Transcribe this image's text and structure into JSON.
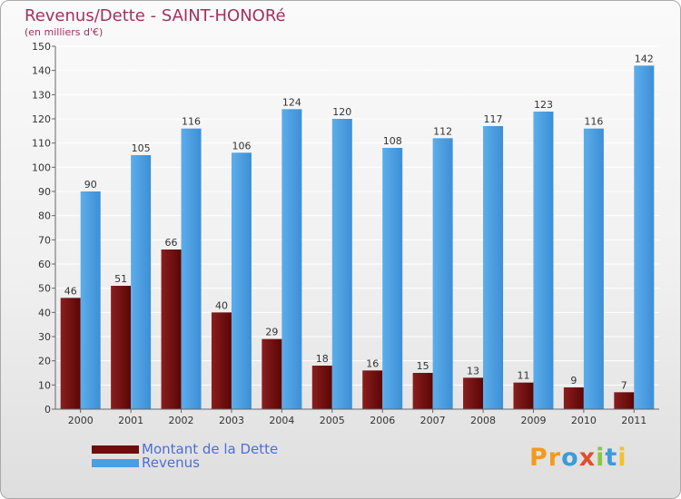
{
  "colors": {
    "debt": "#6e0b0b",
    "revenue": "#4a9ee2",
    "title": "#a3305f",
    "legend_text": "#4d6ed6",
    "axis_text": "#333333",
    "grid": "#ffffff"
  },
  "logo": {
    "text": "Proxiti",
    "letter_colors": [
      "#f39a1d",
      "#f39a1d",
      "#3c9bd8",
      "#e24d2c",
      "#8cc63f",
      "#3c9bd8",
      "#f3c12a"
    ]
  },
  "chart_data": {
    "type": "bar",
    "title": "Revenus/Dette - SAINT-HONORé",
    "subtitle": "(en milliers d'€)",
    "categories": [
      "2000",
      "2001",
      "2002",
      "2003",
      "2004",
      "2005",
      "2006",
      "2007",
      "2008",
      "2009",
      "2010",
      "2011"
    ],
    "series": [
      {
        "name": "Montant de la Dette",
        "values": [
          46,
          51,
          66,
          40,
          29,
          18,
          16,
          15,
          13,
          11,
          9,
          7
        ]
      },
      {
        "name": "Revenus",
        "values": [
          90,
          105,
          116,
          106,
          124,
          120,
          108,
          112,
          117,
          123,
          116,
          142
        ]
      }
    ],
    "ylim": [
      0,
      150
    ],
    "yticks": [
      0,
      10,
      20,
      30,
      40,
      50,
      60,
      70,
      80,
      90,
      100,
      110,
      120,
      130,
      140,
      150
    ],
    "grid": true,
    "legend_position": "bottom-left"
  }
}
